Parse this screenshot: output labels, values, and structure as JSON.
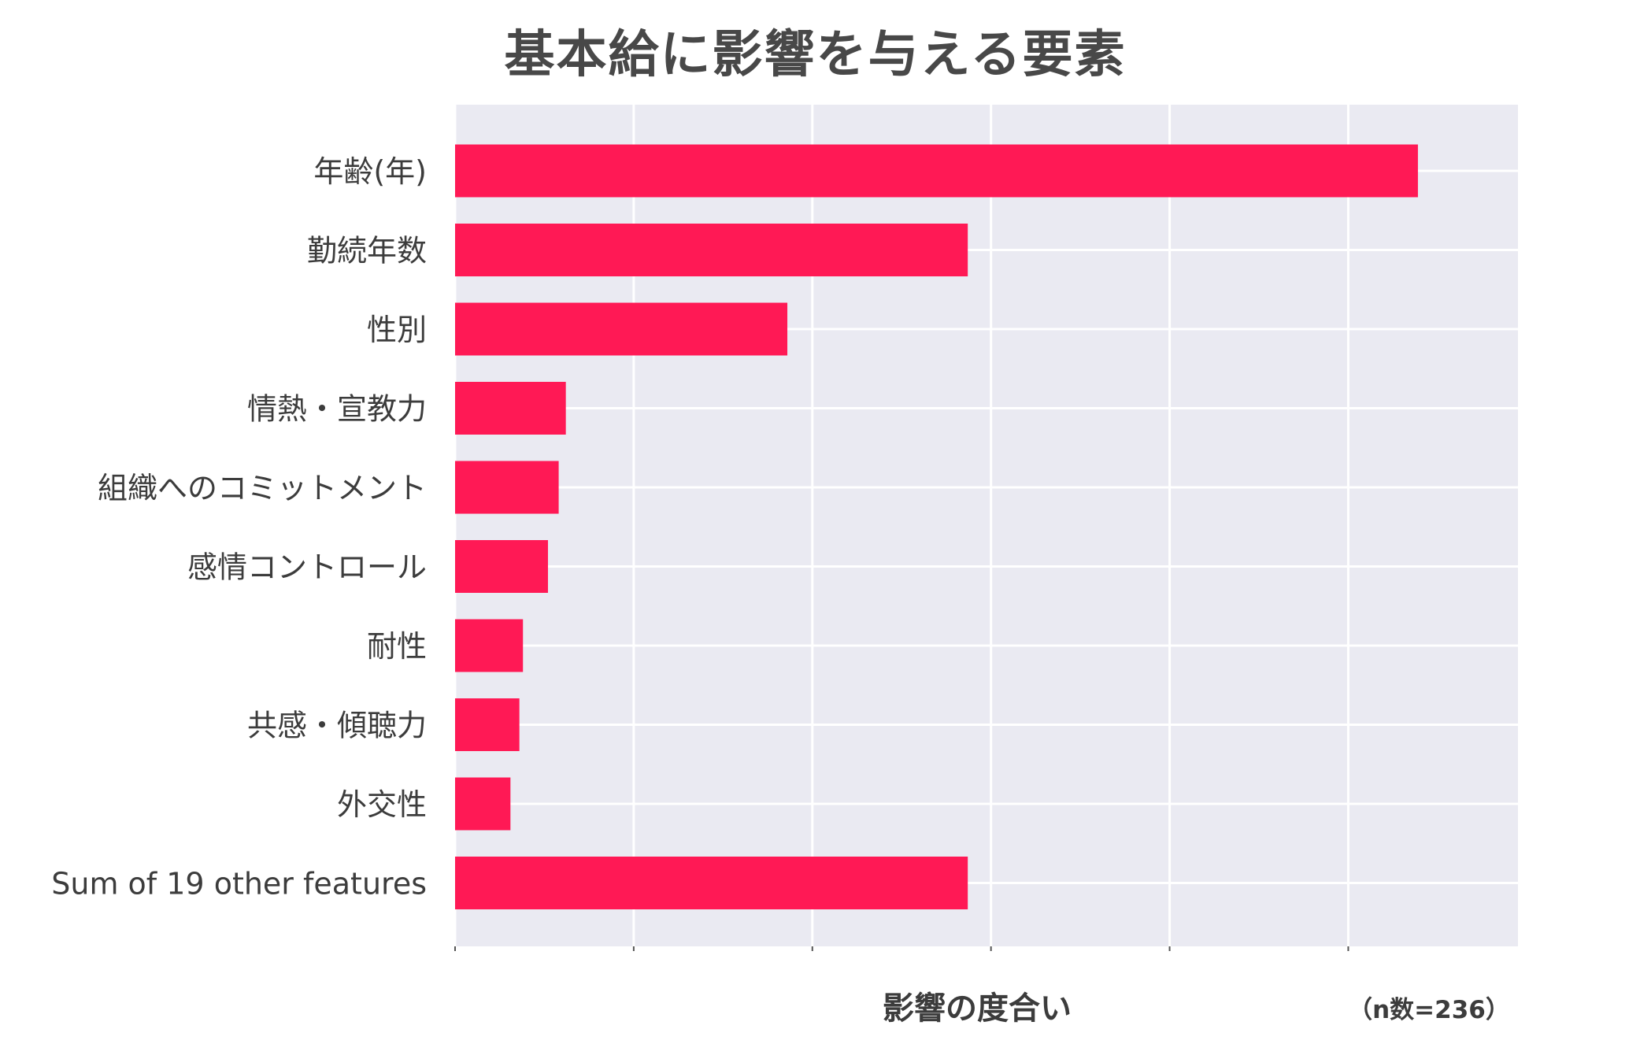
{
  "chart_data": {
    "type": "bar",
    "orientation": "horizontal",
    "title": "基本給に影響を与える要素",
    "xlabel": "影響の度合い",
    "ylabel": "",
    "note": "（n数=236）",
    "categories": [
      "年齢(年)",
      "勤続年数",
      "性別",
      "情熱・宣教力",
      "組織へのコミットメント",
      "感情コントロール",
      "耐性",
      "共感・傾聴力",
      "外交性",
      "Sum of 19 other features"
    ],
    "values": [
      5.39,
      2.87,
      1.86,
      0.62,
      0.58,
      0.52,
      0.38,
      0.36,
      0.31,
      2.87
    ],
    "xlim": [
      0,
      5.95
    ],
    "xticks": [
      0,
      1,
      2,
      3,
      4,
      5
    ],
    "xtick_labels_visible": false,
    "grid": true,
    "legend": "none",
    "colors": {
      "bar": "#ff1955",
      "plot_background": "#eaeaf2",
      "grid": "#ffffff",
      "text": "#3c3c3c"
    }
  }
}
